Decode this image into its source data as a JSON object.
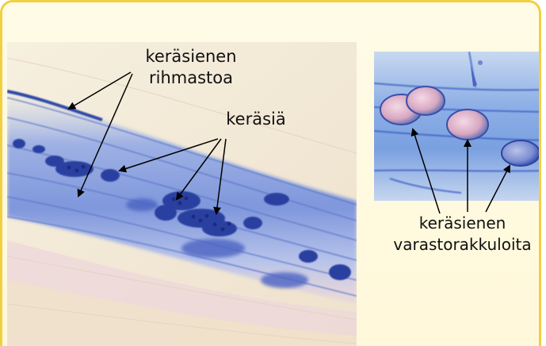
{
  "labels": {
    "hyphae": [
      "keräsienen",
      "rihmastoa"
    ],
    "arbuscules": [
      "keräsiä"
    ],
    "vesicles": [
      "keräsienen",
      "varastorakkuloita"
    ]
  },
  "colors": {
    "frame_border": "#f2cf3f",
    "frame_fill": "#fffbe6",
    "stain_blue": "#3f62c8",
    "dark_blue": "#24358f",
    "vesicle_pink": "#d9a8c0"
  }
}
